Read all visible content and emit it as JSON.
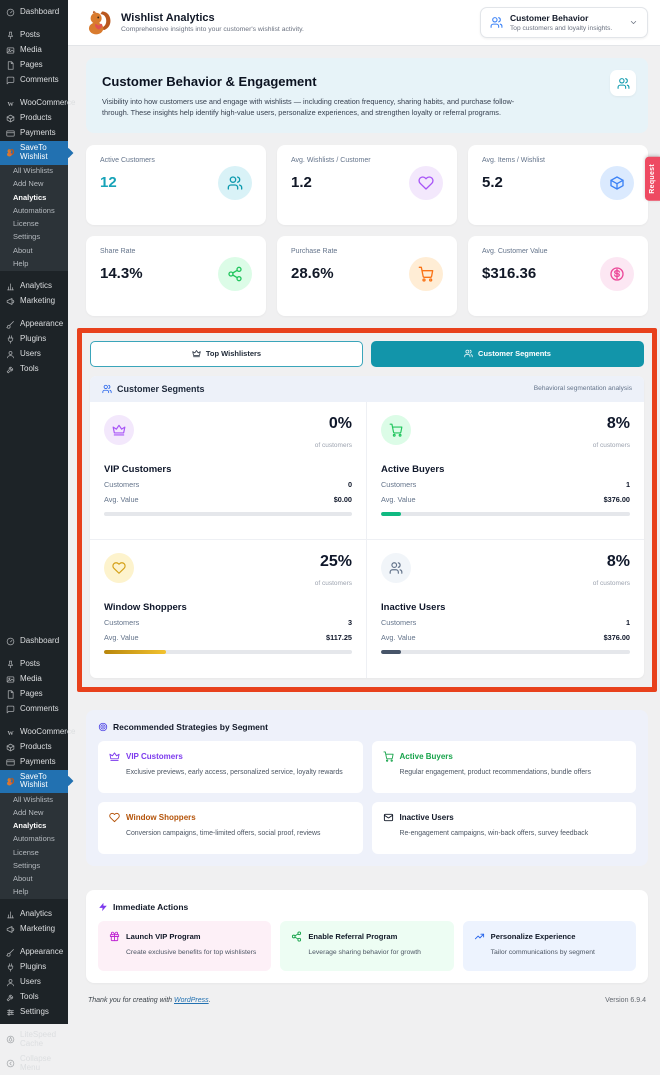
{
  "colors": {
    "primary_teal": "#1295aa",
    "active_blue": "#2271b1",
    "annotation": "#e8411c",
    "request_tab": "#ee4a62",
    "sidebar_bg": "#1d2327"
  },
  "sidebar": {
    "menus": [
      {
        "items": [
          {
            "label": "Dashboard",
            "icon": "gauge"
          },
          {
            "is_gap": true
          },
          {
            "label": "Posts",
            "icon": "pin"
          },
          {
            "label": "Media",
            "icon": "media"
          },
          {
            "label": "Pages",
            "icon": "pages"
          },
          {
            "label": "Comments",
            "icon": "comment"
          },
          {
            "is_gap": true
          },
          {
            "label": "WooCommerce",
            "icon": "woo"
          },
          {
            "label": "Products",
            "icon": "product"
          },
          {
            "label": "Payments",
            "icon": "card"
          },
          {
            "label": "SaveTo Wishlist",
            "icon": "squirrel",
            "active": true
          },
          {
            "label": "All Wishlists",
            "is_sub": true
          },
          {
            "label": "Add New",
            "is_sub": true
          },
          {
            "label": "Analytics",
            "is_sub": true,
            "current": true
          },
          {
            "label": "Automations",
            "is_sub": true
          },
          {
            "label": "License",
            "is_sub": true
          },
          {
            "label": "Settings",
            "is_sub": true
          },
          {
            "label": "About",
            "is_sub": true
          },
          {
            "label": "Help",
            "is_sub": true
          },
          {
            "is_gap": true
          },
          {
            "label": "Analytics",
            "icon": "chart"
          },
          {
            "label": "Marketing",
            "icon": "megaphone"
          },
          {
            "is_gap": true
          },
          {
            "label": "Appearance",
            "icon": "brush"
          },
          {
            "label": "Plugins",
            "icon": "plug"
          },
          {
            "label": "Users",
            "icon": "user"
          },
          {
            "label": "Tools",
            "icon": "wrench"
          }
        ]
      },
      {
        "items": [
          {
            "label": "Dashboard",
            "icon": "gauge"
          },
          {
            "is_gap": true
          },
          {
            "label": "Posts",
            "icon": "pin"
          },
          {
            "label": "Media",
            "icon": "media"
          },
          {
            "label": "Pages",
            "icon": "pages"
          },
          {
            "label": "Comments",
            "icon": "comment"
          },
          {
            "is_gap": true
          },
          {
            "label": "WooCommerce",
            "icon": "woo"
          },
          {
            "label": "Products",
            "icon": "product"
          },
          {
            "label": "Payments",
            "icon": "card"
          },
          {
            "label": "SaveTo Wishlist",
            "icon": "squirrel",
            "active": true
          },
          {
            "label": "All Wishlists",
            "is_sub": true
          },
          {
            "label": "Add New",
            "is_sub": true
          },
          {
            "label": "Analytics",
            "is_sub": true,
            "current": true
          },
          {
            "label": "Automations",
            "is_sub": true
          },
          {
            "label": "License",
            "is_sub": true
          },
          {
            "label": "Settings",
            "is_sub": true
          },
          {
            "label": "About",
            "is_sub": true
          },
          {
            "label": "Help",
            "is_sub": true
          },
          {
            "is_gap": true
          },
          {
            "label": "Analytics",
            "icon": "chart"
          },
          {
            "label": "Marketing",
            "icon": "megaphone"
          },
          {
            "is_gap": true
          },
          {
            "label": "Appearance",
            "icon": "brush"
          },
          {
            "label": "Plugins",
            "icon": "plug"
          },
          {
            "label": "Users",
            "icon": "user"
          },
          {
            "label": "Tools",
            "icon": "wrench"
          },
          {
            "label": "Settings",
            "icon": "sliders"
          },
          {
            "is_gap": true
          },
          {
            "label": "LiteSpeed Cache",
            "icon": "speed"
          },
          {
            "label": "Collapse Menu",
            "icon": "collapse"
          }
        ]
      }
    ]
  },
  "header": {
    "title": "Wishlist Analytics",
    "subtitle": "Comprehensive insights into your customer's wishlist activity.",
    "logo_icon": "squirrel"
  },
  "report_dropdown": {
    "label": "Customer Behavior",
    "sublabel": "Top customers and loyalty insights.",
    "icon": "users"
  },
  "hero": {
    "title": "Customer Behavior & Engagement",
    "description": "Visibility into how customers use and engage with wishlists — including creation frequency, sharing habits, and purchase follow-through. These insights help identify high-value users, personalize experiences, and strengthen loyalty or referral programs.",
    "icon": "users"
  },
  "stats": [
    {
      "label": "Active Customers",
      "value": "12",
      "icon": "users",
      "icon_color": "#0d9aae",
      "circle_bg": "#d9f2f7",
      "value_color": "#17a3b8"
    },
    {
      "label": "Avg. Wishlists / Customer",
      "value": "1.2",
      "icon": "heart",
      "icon_color": "#a855f7",
      "circle_bg": "#f3e8fc",
      "value_color": "#111827"
    },
    {
      "label": "Avg. Items / Wishlist",
      "value": "5.2",
      "icon": "box",
      "icon_color": "#3b82f6",
      "circle_bg": "#dbeafe",
      "value_color": "#111827"
    },
    {
      "label": "Share Rate",
      "value": "14.3%",
      "icon": "share",
      "icon_color": "#22c55e",
      "circle_bg": "#dcfce7",
      "value_color": "#111827"
    },
    {
      "label": "Purchase Rate",
      "value": "28.6%",
      "icon": "cart",
      "icon_color": "#f97316",
      "circle_bg": "#ffedd5",
      "value_color": "#111827"
    },
    {
      "label": "Avg. Customer Value",
      "value": "$316.36",
      "icon": "dollar",
      "icon_color": "#ec4899",
      "circle_bg": "#fce7f3",
      "value_color": "#111827"
    }
  ],
  "tabs": [
    {
      "label": "Top Wishlisters",
      "icon": "crown",
      "active": false
    },
    {
      "label": "Customer Segments",
      "icon": "users",
      "active": true
    }
  ],
  "segments_panel": {
    "title": "Customer Segments",
    "icon": "users",
    "note": "Behavioral segmentation analysis",
    "of_label": "of customers",
    "customers_label": "Customers",
    "avg_value_label": "Avg. Value",
    "segments": [
      {
        "name": "VIP Customers",
        "icon": "crown",
        "icon_color": "#a855f7",
        "circle_bg": "#f3e8fc",
        "pct": "0%",
        "customers": "0",
        "avg_value": "$0.00",
        "bar_width": "0%",
        "bar_color": "#a855f7"
      },
      {
        "name": "Active Buyers",
        "icon": "cart",
        "icon_color": "#22c55e",
        "circle_bg": "#dcfce7",
        "pct": "8%",
        "customers": "1",
        "avg_value": "$376.00",
        "bar_width": "8%",
        "bar_color": "#10b981"
      },
      {
        "name": "Window Shoppers",
        "icon": "heart",
        "icon_color": "#d4a017",
        "circle_bg": "#fdf3cd",
        "pct": "25%",
        "customers": "3",
        "avg_value": "$117.25",
        "bar_width": "25%",
        "bar_color": "linear-gradient(90deg,#b8860b,#f2c230)"
      },
      {
        "name": "Inactive Users",
        "icon": "users",
        "icon_color": "#64748b",
        "circle_bg": "#f1f5f9",
        "pct": "8%",
        "customers": "1",
        "avg_value": "$376.00",
        "bar_width": "8%",
        "bar_color": "#475569"
      }
    ]
  },
  "strategies": {
    "title": "Recommended Strategies by Segment",
    "icon": "target",
    "icon_color": "#4f46e5",
    "items": [
      {
        "name": "VIP Customers",
        "icon": "crown",
        "color": "#7c3aed",
        "text": "Exclusive previews, early access, personalized service, loyalty rewards"
      },
      {
        "name": "Active Buyers",
        "icon": "cart",
        "color": "#16a34a",
        "text": "Regular engagement, product recommendations, bundle offers"
      },
      {
        "name": "Window Shoppers",
        "icon": "heart",
        "color": "#b45309",
        "icon_color": "#d4a017",
        "text": "Conversion campaigns, time-limited offers, social proof, reviews"
      },
      {
        "name": "Inactive Users",
        "icon": "mail",
        "color": "#111827",
        "icon_color": "#334155",
        "text": "Re-engagement campaigns, win-back offers, survey feedback"
      }
    ]
  },
  "actions": {
    "title": "Immediate Actions",
    "icon": "zap",
    "icon_color": "#7c3aed",
    "items": [
      {
        "name": "Launch VIP Program",
        "icon": "gift",
        "icon_color": "#c026d3",
        "bg": "#fdf0f7",
        "text": "Create exclusive benefits for top wishlisters"
      },
      {
        "name": "Enable Referral Program",
        "icon": "share",
        "icon_color": "#16a34a",
        "bg": "#edfdf3",
        "text": "Leverage sharing behavior for growth"
      },
      {
        "name": "Personalize Experience",
        "icon": "trend",
        "icon_color": "#2563eb",
        "bg": "#edf3fe",
        "text": "Tailor communications by segment"
      }
    ]
  },
  "footer": {
    "thanks": "Thank you for creating with",
    "link": "WordPress",
    "period": ".",
    "version": "Version 6.9.4"
  },
  "request_tab": {
    "label": "Request"
  }
}
